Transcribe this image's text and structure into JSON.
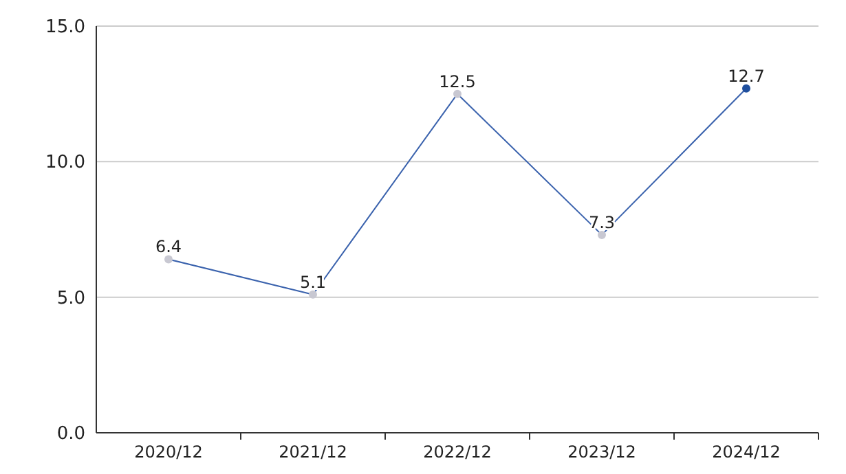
{
  "chart_data": {
    "type": "line",
    "categories": [
      "2020/12",
      "2021/12",
      "2022/12",
      "2023/12",
      "2024/12"
    ],
    "series": [
      {
        "color": "#3a62ad",
        "values": [
          6.4,
          5.1,
          12.5,
          7.3,
          12.7
        ],
        "colors": [
          "#c8c8d2",
          "#c8c8d2",
          "#c8c8d2",
          "#c8c8d2",
          "#1f4f9e"
        ]
      }
    ],
    "ylim": [
      0,
      15
    ],
    "yticks": [
      {
        "value": 0,
        "label": "0.0"
      },
      {
        "value": 5,
        "label": "5.0"
      },
      {
        "value": 10,
        "label": "10.0"
      },
      {
        "value": 15,
        "label": "15.0"
      }
    ],
    "grid": "y",
    "marker": "circle",
    "data_labels": true
  }
}
